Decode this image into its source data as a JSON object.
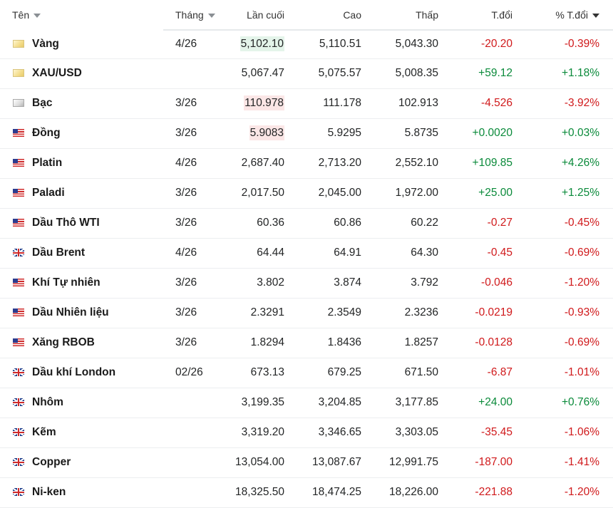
{
  "headers": {
    "name": "Tên",
    "month": "Tháng",
    "last": "Lần cuối",
    "high": "Cao",
    "low": "Thấp",
    "change": "T.đổi",
    "change_pct": "% T.đổi"
  },
  "colors": {
    "positive": "#0a8a3a",
    "negative": "#d0191b"
  },
  "rows": [
    {
      "flag": "gold-icon",
      "name": "Vàng",
      "month": "4/26",
      "last": "5,102.10",
      "high": "5,110.51",
      "low": "5,043.30",
      "change": "-20.20",
      "change_pct": "-0.39%",
      "dir": "neg",
      "last_hl": "up"
    },
    {
      "flag": "gold-icon",
      "name": "XAU/USD",
      "month": "",
      "last": "5,067.47",
      "high": "5,075.57",
      "low": "5,008.35",
      "change": "+59.12",
      "change_pct": "+1.18%",
      "dir": "pos",
      "last_hl": ""
    },
    {
      "flag": "silver-icon",
      "name": "Bạc",
      "month": "3/26",
      "last": "110.978",
      "high": "111.178",
      "low": "102.913",
      "change": "-4.526",
      "change_pct": "-3.92%",
      "dir": "neg",
      "last_hl": "down"
    },
    {
      "flag": "us-flag-icon",
      "name": "Đồng",
      "month": "3/26",
      "last": "5.9083",
      "high": "5.9295",
      "low": "5.8735",
      "change": "+0.0020",
      "change_pct": "+0.03%",
      "dir": "pos",
      "last_hl": "down"
    },
    {
      "flag": "us-flag-icon",
      "name": "Platin",
      "month": "4/26",
      "last": "2,687.40",
      "high": "2,713.20",
      "low": "2,552.10",
      "change": "+109.85",
      "change_pct": "+4.26%",
      "dir": "pos",
      "last_hl": ""
    },
    {
      "flag": "us-flag-icon",
      "name": "Paladi",
      "month": "3/26",
      "last": "2,017.50",
      "high": "2,045.00",
      "low": "1,972.00",
      "change": "+25.00",
      "change_pct": "+1.25%",
      "dir": "pos",
      "last_hl": ""
    },
    {
      "flag": "us-flag-icon",
      "name": "Dầu Thô WTI",
      "month": "3/26",
      "last": "60.36",
      "high": "60.86",
      "low": "60.22",
      "change": "-0.27",
      "change_pct": "-0.45%",
      "dir": "neg",
      "last_hl": ""
    },
    {
      "flag": "uk-flag-icon",
      "name": "Dầu Brent",
      "month": "4/26",
      "last": "64.44",
      "high": "64.91",
      "low": "64.30",
      "change": "-0.45",
      "change_pct": "-0.69%",
      "dir": "neg",
      "last_hl": ""
    },
    {
      "flag": "us-flag-icon",
      "name": "Khí Tự nhiên",
      "month": "3/26",
      "last": "3.802",
      "high": "3.874",
      "low": "3.792",
      "change": "-0.046",
      "change_pct": "-1.20%",
      "dir": "neg",
      "last_hl": ""
    },
    {
      "flag": "us-flag-icon",
      "name": "Dầu Nhiên liệu",
      "month": "3/26",
      "last": "2.3291",
      "high": "2.3549",
      "low": "2.3236",
      "change": "-0.0219",
      "change_pct": "-0.93%",
      "dir": "neg",
      "last_hl": ""
    },
    {
      "flag": "us-flag-icon",
      "name": "Xăng RBOB",
      "month": "3/26",
      "last": "1.8294",
      "high": "1.8436",
      "low": "1.8257",
      "change": "-0.0128",
      "change_pct": "-0.69%",
      "dir": "neg",
      "last_hl": ""
    },
    {
      "flag": "uk-flag-icon",
      "name": "Dầu khí London",
      "month": "02/26",
      "last": "673.13",
      "high": "679.25",
      "low": "671.50",
      "change": "-6.87",
      "change_pct": "-1.01%",
      "dir": "neg",
      "last_hl": ""
    },
    {
      "flag": "uk-flag-icon",
      "name": "Nhôm",
      "month": "",
      "last": "3,199.35",
      "high": "3,204.85",
      "low": "3,177.85",
      "change": "+24.00",
      "change_pct": "+0.76%",
      "dir": "pos",
      "last_hl": ""
    },
    {
      "flag": "uk-flag-icon",
      "name": "Kẽm",
      "month": "",
      "last": "3,319.20",
      "high": "3,346.65",
      "low": "3,303.05",
      "change": "-35.45",
      "change_pct": "-1.06%",
      "dir": "neg",
      "last_hl": ""
    },
    {
      "flag": "uk-flag-icon",
      "name": "Copper",
      "month": "",
      "last": "13,054.00",
      "high": "13,087.67",
      "low": "12,991.75",
      "change": "-187.00",
      "change_pct": "-1.41%",
      "dir": "neg",
      "last_hl": ""
    },
    {
      "flag": "uk-flag-icon",
      "name": "Ni-ken",
      "month": "",
      "last": "18,325.50",
      "high": "18,474.25",
      "low": "18,226.00",
      "change": "-221.88",
      "change_pct": "-1.20%",
      "dir": "neg",
      "last_hl": ""
    }
  ]
}
